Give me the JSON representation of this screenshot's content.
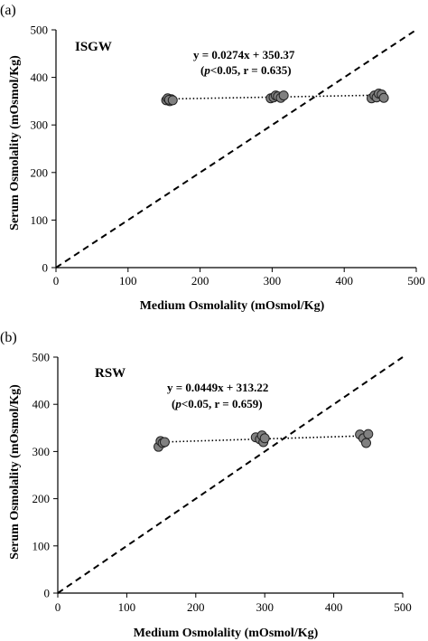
{
  "chart_data": [
    {
      "type": "scatter",
      "panel_label": "(a)",
      "title": "ISGW",
      "xlabel": "Medium Osmolality (mOsmol/Kg)",
      "ylabel": "Serum Osmolality (mOsmol/Kg)",
      "xlim": [
        0,
        500
      ],
      "ylim": [
        0,
        500
      ],
      "xticks": [
        0,
        100,
        200,
        300,
        400,
        500
      ],
      "yticks": [
        0,
        100,
        200,
        300,
        400,
        500
      ],
      "equation": "y = 0.0274x + 350.37",
      "stats_p": "p",
      "stats_rest": "<0.05, r = 0.635)",
      "trend": {
        "slope": 0.0274,
        "intercept": 350.37,
        "x": [
          155,
          455
        ]
      },
      "identity_line": true,
      "points": [
        [
          153,
          352
        ],
        [
          155,
          356
        ],
        [
          158,
          350
        ],
        [
          160,
          354
        ],
        [
          157,
          353
        ],
        [
          162,
          352
        ],
        [
          298,
          356
        ],
        [
          302,
          358
        ],
        [
          305,
          362
        ],
        [
          308,
          360
        ],
        [
          312,
          357
        ],
        [
          316,
          362
        ],
        [
          438,
          356
        ],
        [
          442,
          362
        ],
        [
          445,
          358
        ],
        [
          448,
          366
        ],
        [
          452,
          364
        ],
        [
          455,
          357
        ]
      ],
      "marker_color": "#808080"
    },
    {
      "type": "scatter",
      "panel_label": "(b)",
      "title": "RSW",
      "xlabel": "Medium Osmolality (mOsmol/Kg)",
      "ylabel": "Serum Osmolality (mOsmol/Kg)",
      "xlim": [
        0,
        500
      ],
      "ylim": [
        0,
        500
      ],
      "xticks": [
        0,
        100,
        200,
        300,
        400,
        500
      ],
      "yticks": [
        0,
        100,
        200,
        300,
        400,
        500
      ],
      "equation": "y = 0.0449x + 313.22",
      "stats_p": "p",
      "stats_rest": "<0.05, r = 0.659)",
      "trend": {
        "slope": 0.0449,
        "intercept": 313.22,
        "x": [
          150,
          455
        ]
      },
      "identity_line": true,
      "points": [
        [
          146,
          310
        ],
        [
          149,
          322
        ],
        [
          152,
          318
        ],
        [
          155,
          320
        ],
        [
          287,
          330
        ],
        [
          293,
          326
        ],
        [
          296,
          334
        ],
        [
          298,
          320
        ],
        [
          300,
          328
        ],
        [
          438,
          336
        ],
        [
          443,
          328
        ],
        [
          447,
          318
        ],
        [
          450,
          337
        ]
      ],
      "marker_color": "#808080"
    }
  ]
}
